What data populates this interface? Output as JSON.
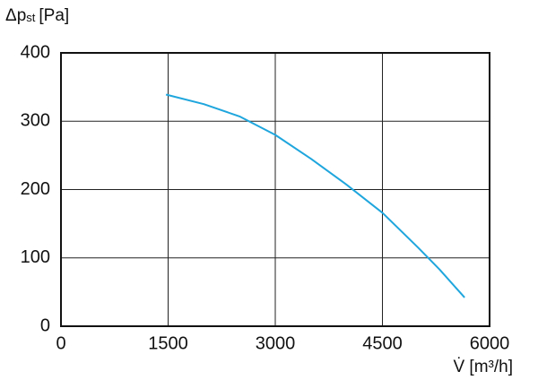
{
  "chart_data": {
    "type": "line",
    "y_label": {
      "symbol": "Δp",
      "subscript": "st",
      "unit": "[Pa]"
    },
    "x_label": "V̇ [m³/h]",
    "x": [
      1470,
      2000,
      2500,
      3000,
      3500,
      4000,
      4500,
      5000,
      5300,
      5650
    ],
    "series": [
      {
        "color": "#1fa6dd",
        "values": [
          339,
          325,
          307,
          280,
          245,
          207,
          166,
          115,
          83,
          42
        ]
      }
    ],
    "xlim": [
      0,
      6000
    ],
    "xticks": [
      0,
      1500,
      3000,
      4500,
      6000
    ],
    "ylim": [
      0,
      400
    ],
    "yticks": [
      0,
      100,
      200,
      300,
      400
    ],
    "grid": true
  }
}
